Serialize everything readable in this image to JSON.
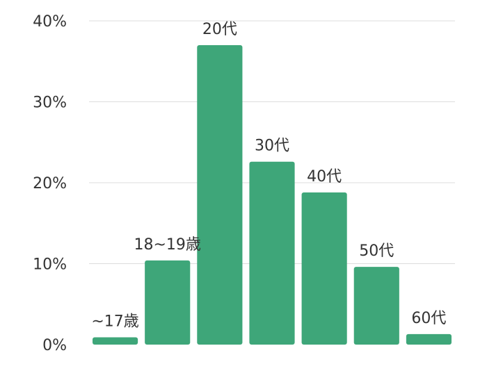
{
  "chart_data": {
    "type": "bar",
    "categories": [
      "~17歳",
      "18~19歳",
      "20代",
      "30代",
      "40代",
      "50代",
      "60代"
    ],
    "values": [
      0.9,
      10.4,
      37.0,
      22.6,
      18.8,
      9.6,
      1.3
    ],
    "ylim": [
      0,
      40
    ],
    "yticks": [
      0,
      10,
      20,
      30,
      40
    ],
    "ytick_labels": [
      "0%",
      "10%",
      "20%",
      "30%",
      "40%"
    ],
    "grid": true,
    "bar_color": "#3ea679",
    "title": "",
    "xlabel": "",
    "ylabel": ""
  }
}
